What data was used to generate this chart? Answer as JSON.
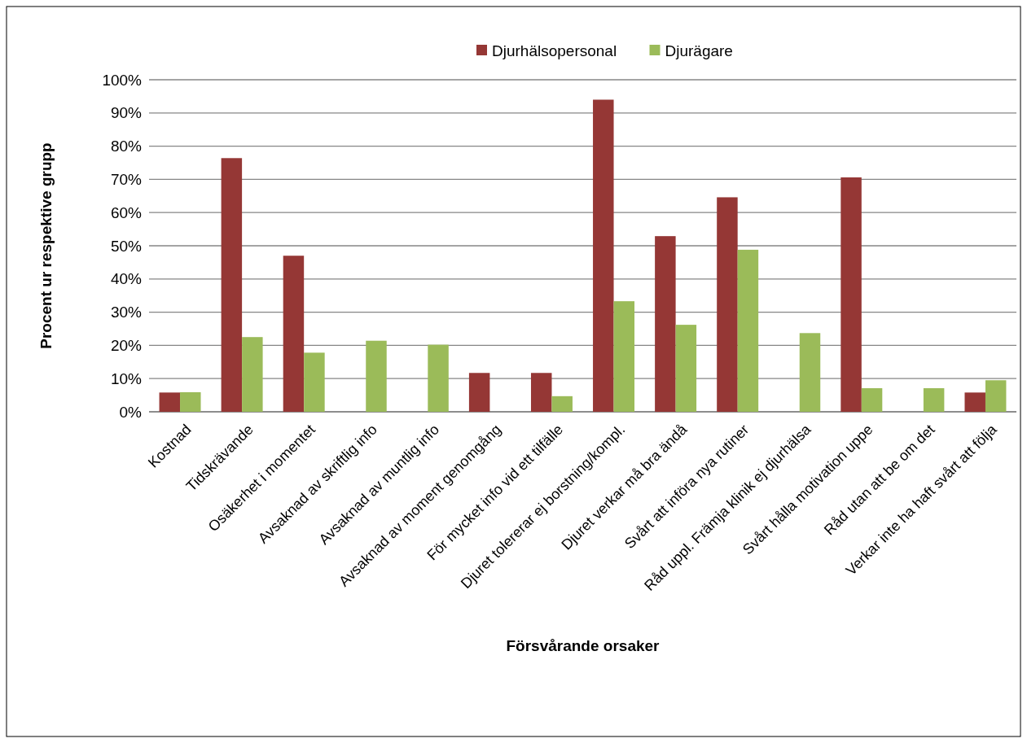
{
  "chart_data": {
    "type": "bar",
    "xlabel": "Försvårande orsaker",
    "ylabel": "Procent ur respektive grupp",
    "categories": [
      "Kostnad",
      "Tidskrävande",
      "Osäkerhet i momentet",
      "Avsaknad av skriftlig info",
      "Avsaknad av muntlig info",
      "Avsaknad av moment genomgång",
      "För mycket info vid ett tilfälle",
      "Djuret tolererar ej borstning/kompl.",
      "Djuret verkar må bra ändå",
      "Svårt att införa nya rutiner",
      "Råd uppl. Främja klinik ej djurhälsa",
      "Svårt hålla motivation uppe",
      "Råd utan att be om det",
      "Verkar inte ha haft svårt att följa"
    ],
    "series": [
      {
        "name": "Djurhälsopersonal",
        "color": "#953735",
        "values": [
          5.8,
          76.4,
          47.0,
          0,
          0,
          11.7,
          11.7,
          94.0,
          52.9,
          64.6,
          0,
          70.6,
          0,
          5.8
        ]
      },
      {
        "name": "Djurägare",
        "color": "#9bbb59",
        "values": [
          5.9,
          22.5,
          17.8,
          21.4,
          20.2,
          0,
          4.7,
          33.3,
          26.2,
          48.8,
          23.7,
          7.1,
          7.1,
          9.5
        ]
      }
    ],
    "ylim": [
      0,
      100
    ],
    "yticks": [
      {
        "value": 0,
        "label": "0%"
      },
      {
        "value": 10,
        "label": "10%"
      },
      {
        "value": 20,
        "label": "20%"
      },
      {
        "value": 30,
        "label": "30%"
      },
      {
        "value": 40,
        "label": "40%"
      },
      {
        "value": 50,
        "label": "50%"
      },
      {
        "value": 60,
        "label": "60%"
      },
      {
        "value": 70,
        "label": "70%"
      },
      {
        "value": 80,
        "label": "80%"
      },
      {
        "value": 90,
        "label": "90%"
      },
      {
        "value": 100,
        "label": "100%"
      }
    ],
    "grid": "y",
    "legend": "top"
  }
}
